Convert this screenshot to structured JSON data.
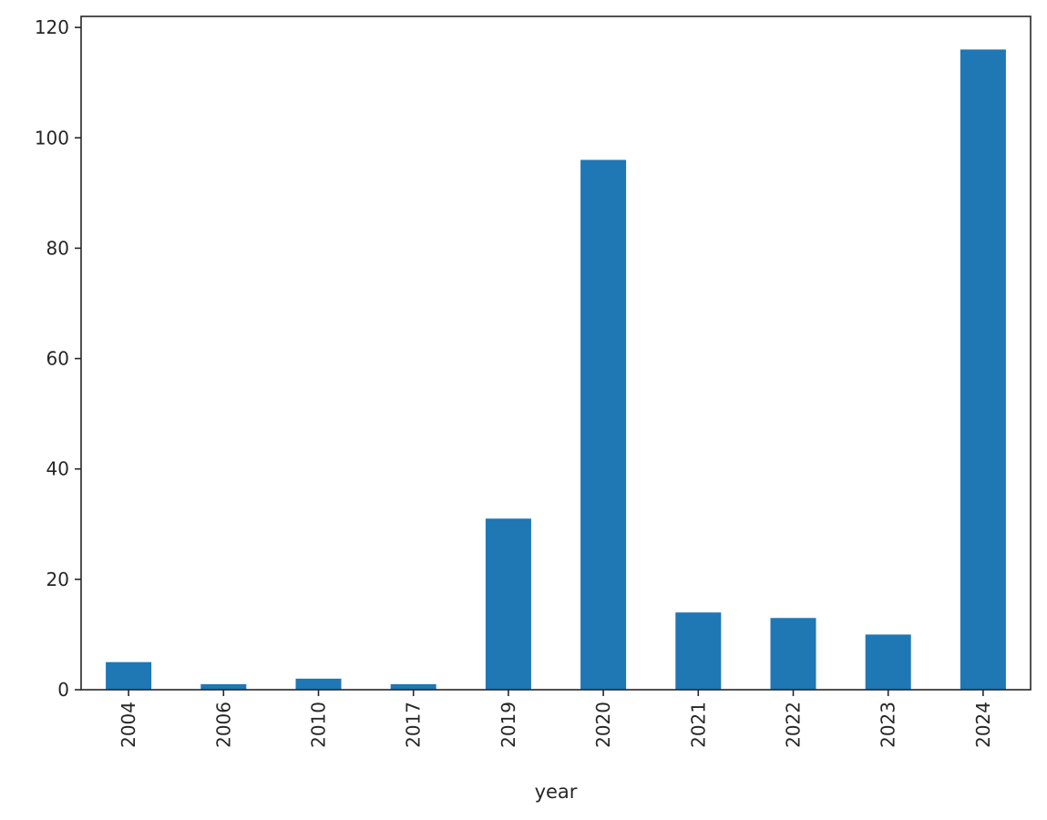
{
  "chart_data": {
    "type": "bar",
    "categories": [
      "2004",
      "2006",
      "2010",
      "2017",
      "2019",
      "2020",
      "2021",
      "2022",
      "2023",
      "2024"
    ],
    "values": [
      5,
      1,
      2,
      1,
      31,
      96,
      14,
      13,
      10,
      116
    ],
    "xlabel": "year",
    "ylabel": "",
    "ylim": [
      0,
      122
    ],
    "yticks": [
      0,
      20,
      40,
      60,
      80,
      100,
      120
    ],
    "grid": false,
    "legend": "none",
    "bar_color": "#1f77b4",
    "axis_color": "#262626"
  }
}
